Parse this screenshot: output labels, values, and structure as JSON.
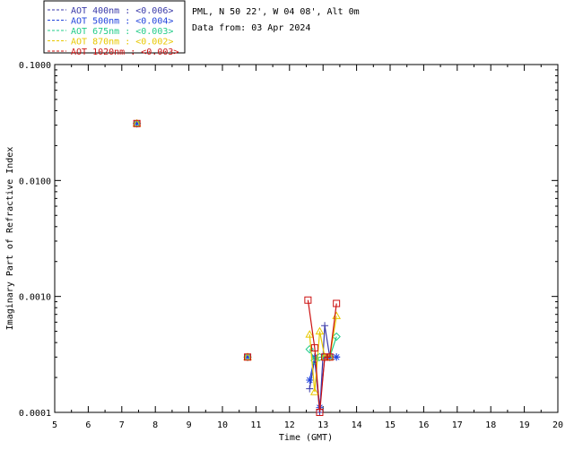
{
  "info": {
    "site": "PML, N 50 22', W 04 08', Alt 0m",
    "date": "Data from: 03 Apr 2024"
  },
  "chart_data": {
    "type": "line",
    "xlabel": "Time (GMT)",
    "ylabel": "Imaginary Part of Refractive Index",
    "xlim": [
      5,
      20
    ],
    "ylim": [
      0.0001,
      0.1
    ],
    "yscale": "log",
    "x_ticks": [
      "5",
      "6",
      "7",
      "8",
      "9",
      "10",
      "11",
      "12",
      "13",
      "14",
      "15",
      "16",
      "17",
      "18",
      "19",
      "20"
    ],
    "y_ticks": [
      "0.0001",
      "0.0010",
      "0.0100",
      "0.1000"
    ],
    "grid": false,
    "legend_position": "top-left",
    "series": [
      {
        "name": "AOT  400nm : <0.006>",
        "color": "#3a3aa8",
        "marker": "plus",
        "x": [
          7.45,
          10.75,
          12.6,
          12.75,
          12.9,
          13.05,
          13.2,
          13.4
        ],
        "y": [
          0.031,
          0.0003,
          0.00016,
          0.00029,
          0.0001,
          0.00056,
          0.0003,
          0.0003
        ]
      },
      {
        "name": "AOT  500nm : <0.004>",
        "color": "#2244dd",
        "marker": "asterisk",
        "x": [
          7.45,
          10.75,
          12.6,
          12.75,
          12.9,
          13.05,
          13.2,
          13.4
        ],
        "y": [
          0.031,
          0.0003,
          0.00019,
          0.0003,
          0.00011,
          0.0003,
          0.0003,
          0.0003
        ]
      },
      {
        "name": "AOT  675nm : <0.003>",
        "color": "#22cc88",
        "marker": "diamond",
        "x": [
          7.45,
          10.75,
          12.6,
          12.75,
          12.9,
          13.05,
          13.2,
          13.4
        ],
        "y": [
          0.031,
          0.0003,
          0.00035,
          0.00028,
          0.0003,
          0.0003,
          0.0003,
          0.00045
        ]
      },
      {
        "name": "AOT  870nm : <0.002>",
        "color": "#e8c800",
        "marker": "triangle",
        "x": [
          7.45,
          10.75,
          12.6,
          12.75,
          12.9,
          13.05,
          13.2,
          13.4
        ],
        "y": [
          0.031,
          0.0003,
          0.00047,
          0.00015,
          0.0005,
          0.0003,
          0.0003,
          0.00068
        ]
      },
      {
        "name": "AOT 1020nm : <0.003>",
        "color": "#cc1111",
        "marker": "square",
        "x": [
          7.45,
          10.75,
          12.55,
          12.75,
          12.9,
          13.05,
          13.2,
          13.4
        ],
        "y": [
          0.031,
          0.0003,
          0.00093,
          0.00036,
          0.0001,
          0.0003,
          0.0003,
          0.00087
        ]
      }
    ]
  }
}
